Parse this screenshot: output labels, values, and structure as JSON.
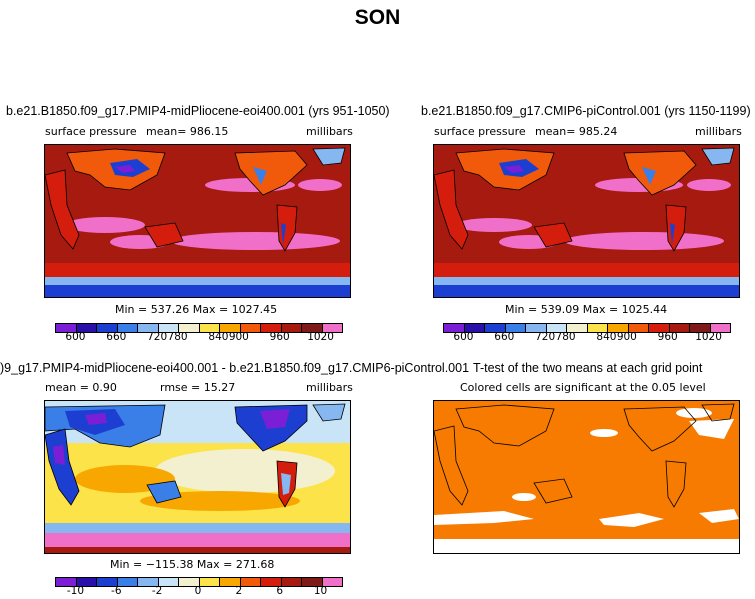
{
  "figure": {
    "title": "SON"
  },
  "chart_data": [
    {
      "type": "heatmap",
      "title": "b.e21.B1850.f09_g17.PMIP4-midPliocene-eoi400.001 (yrs 951-1050)",
      "variable": "surface pressure",
      "mean_label": "mean= 986.15",
      "units": "millibars",
      "minmax_label": "Min = 537.26  Max = 1027.45",
      "min": 537.26,
      "max": 1027.45,
      "mean": 986.15,
      "colorbar": {
        "colors": [
          "#7b1fd6",
          "#2a0fa8",
          "#1d3fd1",
          "#3a7ee8",
          "#86b7f0",
          "#c8e4f6",
          "#f3f0d0",
          "#fde34a",
          "#f7a700",
          "#f05a0a",
          "#d41d0c",
          "#a61a10",
          "#7e1a1a",
          "#f06fc8"
        ],
        "tick_labels": [
          "600",
          "660",
          "720",
          "780",
          "840",
          "900",
          "960",
          "1020"
        ]
      }
    },
    {
      "type": "heatmap",
      "title": "b.e21.B1850.f09_g17.CMIP6-piControl.001 (yrs 1150-1199)",
      "variable": "surface pressure",
      "mean_label": "mean= 985.24",
      "units": "millibars",
      "minmax_label": "Min = 539.09  Max = 1025.44",
      "min": 539.09,
      "max": 1025.44,
      "mean": 985.24,
      "colorbar": {
        "colors": [
          "#7b1fd6",
          "#2a0fa8",
          "#1d3fd1",
          "#3a7ee8",
          "#86b7f0",
          "#c8e4f6",
          "#f3f0d0",
          "#fde34a",
          "#f7a700",
          "#f05a0a",
          "#d41d0c",
          "#a61a10",
          "#7e1a1a",
          "#f06fc8"
        ],
        "tick_labels": [
          "600",
          "660",
          "720",
          "780",
          "840",
          "900",
          "960",
          "1020"
        ]
      }
    },
    {
      "type": "heatmap",
      "title": ")9_g17.PMIP4-midPliocene-eoi400.001 - b.e21.B1850.f09_g17.CMIP6-piControl.001",
      "mean_label": "mean =    0.90",
      "rmse_label": "rmse =   15.27",
      "units": "millibars",
      "minmax_label": "Min = −115.38  Max = 271.68",
      "min": -115.38,
      "max": 271.68,
      "mean": 0.9,
      "rmse": 15.27,
      "colorbar": {
        "colors": [
          "#7b1fd6",
          "#2a0fa8",
          "#1d3fd1",
          "#3a7ee8",
          "#86b7f0",
          "#c8e4f6",
          "#f3f0d0",
          "#fde34a",
          "#f7a700",
          "#f05a0a",
          "#d41d0c",
          "#a61a10",
          "#7e1a1a",
          "#f06fc8"
        ],
        "tick_labels": [
          "-10",
          "-6",
          "-2",
          "0",
          "2",
          "6",
          "10"
        ]
      }
    },
    {
      "type": "heatmap",
      "title": "T-test of the two means at each grid point",
      "subtitle": "Colored cells are significant at the 0.05 level",
      "fill_color": "#f77b00"
    }
  ]
}
